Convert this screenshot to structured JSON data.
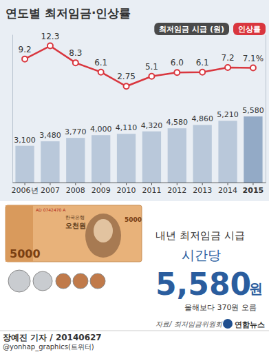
{
  "chart_data": {
    "type": "bar",
    "title": "연도별 최저임금·인상률",
    "categories": [
      "2006년",
      "2007",
      "2008",
      "2009",
      "2010",
      "2011",
      "2012",
      "2013",
      "2014",
      "2015"
    ],
    "series": [
      {
        "name": "최저임금 시급 (원)",
        "type": "bar",
        "colors": [
          "#b9c8da",
          "#b9c8da",
          "#b9c8da",
          "#b9c8da",
          "#b9c8da",
          "#b9c8da",
          "#b9c8da",
          "#b9c8da",
          "#b9c8da",
          "#93aac6"
        ],
        "values": [
          3100,
          3480,
          3770,
          4000,
          4110,
          4320,
          4580,
          4860,
          5210,
          5580
        ],
        "value_labels": [
          "3,100",
          "3,480",
          "3,770",
          "4,000",
          "4,110",
          "4,320",
          "4,580",
          "4,860",
          "5,210",
          "5,580"
        ],
        "data_labels": true
      },
      {
        "name": "인상률",
        "type": "line",
        "axis": "y2",
        "color": "#d9363e",
        "marker": "circle",
        "line_style": "solid",
        "values": [
          9.2,
          12.3,
          8.3,
          6.1,
          2.75,
          5.1,
          6.0,
          6.1,
          7.2,
          7.1
        ],
        "value_labels": [
          "9.2",
          "12.3",
          "8.3",
          "6.1",
          "2.75",
          "5.1",
          "6.0",
          "6.1",
          "7.2",
          "7.1%"
        ],
        "data_labels": true
      }
    ],
    "ylim": [
      0,
      12500
    ],
    "yticks": [],
    "y2lim": [
      -20,
      15
    ],
    "y2ticks": [],
    "grid": false,
    "tick_labels": "x",
    "legend": "top-right"
  },
  "banknote": {
    "bank": "한국은행",
    "name": "오천원",
    "denomination": "5000",
    "serial": "AD 0742470 A"
  },
  "info": {
    "heading": "내년 최저임금 시급",
    "per_hour": "시간당",
    "amount": "5,580",
    "unit": "원",
    "note": "올해보다 370원 오름",
    "source": "자료/ 최저임금위원회",
    "agency": "연합뉴스"
  },
  "footer": {
    "byline": "장예진 기자 / 20140627",
    "twitter": "@yonhap_graphics(트위터)"
  }
}
